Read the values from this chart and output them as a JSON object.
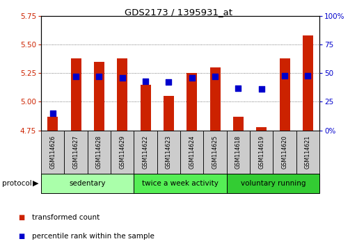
{
  "title": "GDS2173 / 1395931_at",
  "samples": [
    "GSM114626",
    "GSM114627",
    "GSM114628",
    "GSM114629",
    "GSM114622",
    "GSM114623",
    "GSM114624",
    "GSM114625",
    "GSM114618",
    "GSM114619",
    "GSM114620",
    "GSM114621"
  ],
  "bar_bottom": 4.75,
  "transformed_counts": [
    4.87,
    5.38,
    5.35,
    5.38,
    5.15,
    5.05,
    5.25,
    5.3,
    4.87,
    4.78,
    5.38,
    5.58
  ],
  "percentile_ranks": [
    15,
    47,
    47,
    46,
    43,
    42,
    46,
    47,
    37,
    36,
    48,
    48
  ],
  "ylim_left": [
    4.75,
    5.75
  ],
  "ylim_right": [
    0,
    100
  ],
  "yticks_left": [
    4.75,
    5.0,
    5.25,
    5.5,
    5.75
  ],
  "yticks_right": [
    0,
    25,
    50,
    75,
    100
  ],
  "ytick_labels_right": [
    "0%",
    "25",
    "50",
    "75",
    "100%"
  ],
  "groups": [
    {
      "label": "sedentary",
      "indices": [
        0,
        1,
        2,
        3
      ],
      "color": "#aaffaa"
    },
    {
      "label": "twice a week activity",
      "indices": [
        4,
        5,
        6,
        7
      ],
      "color": "#55ee55"
    },
    {
      "label": "voluntary running",
      "indices": [
        8,
        9,
        10,
        11
      ],
      "color": "#33cc33"
    }
  ],
  "bar_color": "#cc2200",
  "dot_color": "#0000cc",
  "grid_color": "#555555",
  "tick_label_color_left": "#cc2200",
  "tick_label_color_right": "#0000cc",
  "bar_width": 0.45,
  "dot_size": 28,
  "protocol_label": "protocol",
  "legend1": "transformed count",
  "legend2": "percentile rank within the sample",
  "sample_box_color": "#cccccc"
}
